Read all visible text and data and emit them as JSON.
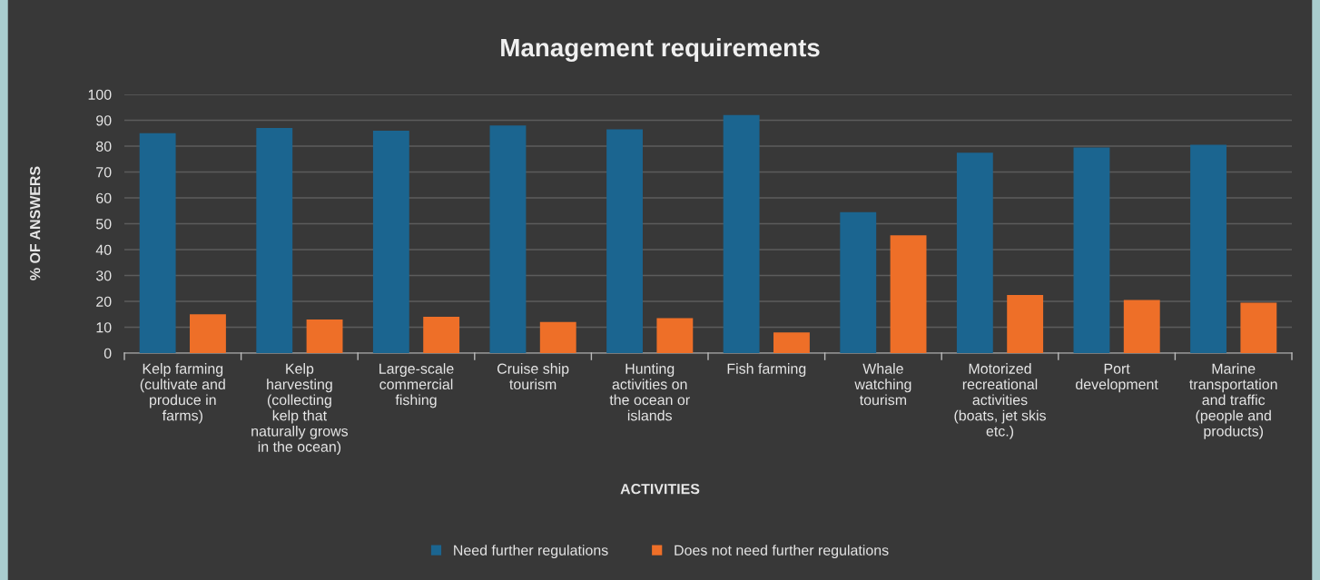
{
  "chart_data": {
    "type": "bar",
    "title": "Management requirements",
    "xlabel": "ACTIVITIES",
    "ylabel": "% OF ANSWERS",
    "categories": [
      "Kelp farming\n(cultivate and\nproduce in\nfarms)",
      "Kelp\nharvesting\n(collecting\nkelp that\nnaturally grows\nin the ocean)",
      "Large-scale\ncommercial\nfishing",
      "Cruise ship\ntourism",
      "Hunting\nactivities on\nthe ocean or\nislands",
      "Fish farming",
      "Whale\nwatching\ntourism",
      "Motorized\nrecreational\nactivities\n(boats, jet skis\netc.)",
      "Port\ndevelopment",
      "Marine\ntransportation\nand traffic\n(people and\nproducts)"
    ],
    "series": [
      {
        "name": "Need further regulations",
        "color": "#1b6590",
        "values": [
          85,
          87,
          86,
          88,
          86.5,
          92,
          54.5,
          77.5,
          79.5,
          80.5
        ]
      },
      {
        "name": "Does not need further regulations",
        "color": "#ee6f28",
        "values": [
          15,
          13,
          14,
          12,
          13.5,
          8,
          45.5,
          22.5,
          20.5,
          19.5
        ]
      }
    ],
    "ylim": [
      0,
      100
    ],
    "yticks": [
      0,
      10,
      20,
      30,
      40,
      50,
      60,
      70,
      80,
      90,
      100
    ],
    "grid": "y",
    "legend": "bottom"
  }
}
